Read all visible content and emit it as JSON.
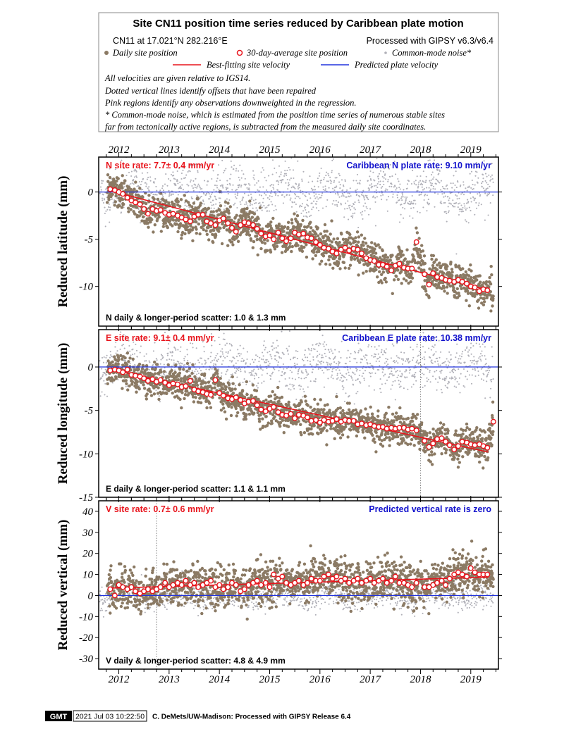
{
  "header": {
    "title": "Site CN11 position time series reduced by Caribbean plate motion",
    "site_info": "CN11 at 17.021°N 282.216°E",
    "processing": "Processed with GIPSY v6.3/v6.4",
    "legend": {
      "daily": "Daily site position",
      "avg30": "30-day-average site position",
      "cmn": "Common-mode noise*",
      "bestfit": "Best-fitting site velocity",
      "predicted": "Predicted plate velocity"
    },
    "notes": [
      "All velocities are given relative to IGS14.",
      "Dotted vertical lines identify offsets that have been repaired",
      "Pink regions identify any observations downweighted in the regression.",
      "* Common-mode noise, which is estimated from the position time series of numerous stable sites",
      "far from tectonically active regions, is subtracted from the measured daily site coordinates."
    ]
  },
  "colors": {
    "daily": "#8b7a64",
    "avg_stroke": "#e8141c",
    "cmn": "#b0b0b8",
    "bestfit": "#e8141c",
    "predicted": "#2233dd",
    "rate_text": "#e8141c",
    "plate_text": "#1111cc"
  },
  "footer": {
    "logo": "GMT",
    "timestamp": "2021 Jul 03 10:22:50",
    "credit": "C. DeMets/UW-Madison: Processed with GIPSY Release 6.4"
  },
  "chart_data": [
    {
      "type": "scatter",
      "component": "N",
      "ylabel": "Reduced latitude (mm)",
      "xticks": [
        2012,
        2013,
        2014,
        2015,
        2016,
        2017,
        2018,
        2019
      ],
      "xlim": [
        2011.6,
        2019.55
      ],
      "ylim": [
        -14.2,
        3.7
      ],
      "yticks": [
        0,
        -5,
        -10
      ],
      "site_rate": "7.7± 0.4 mm/yr",
      "site_rate_label": "N site rate:",
      "plate_rate": "Caribbean N plate rate: 9.10 mm/yr",
      "scatter": "N daily & longer-period scatter:   1.0 &   1.3 mm",
      "offsets": [],
      "bestfit": {
        "x": [
          2011.85,
          2019.35
        ],
        "y": [
          0.1,
          -10.4
        ]
      },
      "predicted": {
        "x": [
          2011.6,
          2019.55
        ],
        "y": [
          0,
          0
        ]
      },
      "avg30": {
        "x": [
          2011.83,
          2011.92,
          2012.0,
          2012.08,
          2012.17,
          2012.25,
          2012.33,
          2012.42,
          2012.5,
          2012.58,
          2012.67,
          2012.75,
          2012.83,
          2012.92,
          2013.0,
          2013.08,
          2013.17,
          2013.25,
          2013.33,
          2013.42,
          2013.5,
          2013.58,
          2013.67,
          2013.75,
          2013.83,
          2013.92,
          2014.0,
          2014.08,
          2014.17,
          2014.25,
          2014.33,
          2014.42,
          2014.5,
          2014.58,
          2014.67,
          2014.75,
          2014.83,
          2014.92,
          2015.0,
          2015.08,
          2015.17,
          2015.25,
          2015.33,
          2015.42,
          2015.5,
          2015.58,
          2015.67,
          2015.75,
          2015.83,
          2015.92,
          2016.0,
          2016.08,
          2016.17,
          2016.25,
          2016.33,
          2016.42,
          2016.5,
          2016.58,
          2016.67,
          2016.75,
          2016.83,
          2016.92,
          2017.0,
          2017.08,
          2017.17,
          2017.25,
          2017.33,
          2017.42,
          2017.5,
          2017.58,
          2017.67,
          2017.75,
          2017.83,
          2017.92,
          2018.08,
          2018.17,
          2018.25,
          2018.33,
          2018.42,
          2018.5,
          2018.58,
          2018.67,
          2018.75,
          2018.83,
          2018.92,
          2019.0,
          2019.08,
          2019.17,
          2019.25,
          2019.33
        ],
        "y": [
          0.3,
          0.2,
          0.0,
          -0.2,
          -0.6,
          -0.9,
          -1.1,
          -1.3,
          -1.8,
          -2.3,
          -1.8,
          -2.0,
          -1.9,
          -2.2,
          -2.4,
          -2.3,
          -2.5,
          -2.7,
          -2.9,
          -3.1,
          -2.6,
          -2.4,
          -2.4,
          -3.1,
          -3.3,
          -3.5,
          -3.0,
          -2.8,
          -3.3,
          -3.8,
          -4.2,
          -3.5,
          -3.2,
          -3.3,
          -3.5,
          -3.9,
          -4.4,
          -4.7,
          -4.6,
          -5.0,
          -4.3,
          -4.9,
          -5.2,
          -4.9,
          -4.3,
          -4.5,
          -4.4,
          -4.8,
          -4.9,
          -5.3,
          -5.6,
          -5.9,
          -6.0,
          -6.3,
          -6.5,
          -6.1,
          -5.9,
          -6.2,
          -6.0,
          -6.1,
          -6.5,
          -7.0,
          -7.2,
          -7.3,
          -7.7,
          -7.7,
          -7.9,
          -8.3,
          -7.8,
          -7.6,
          -8.0,
          -8.1,
          -8.1,
          -5.3,
          -8.7,
          -9.8,
          -8.6,
          -9.0,
          -9.1,
          -9.3,
          -9.4,
          -9.5,
          -9.3,
          -9.5,
          -9.7,
          -10.0,
          -10.1,
          -10.5,
          -10.3,
          -10.4
        ]
      }
    },
    {
      "type": "scatter",
      "component": "E",
      "ylabel": "Reduced longitude (mm)",
      "xticks": [
        2012,
        2013,
        2014,
        2015,
        2016,
        2017,
        2018,
        2019
      ],
      "xlim": [
        2011.6,
        2019.55
      ],
      "ylim": [
        -15.0,
        4.3
      ],
      "yticks": [
        0,
        -5,
        -10,
        -15
      ],
      "site_rate": "9.1± 0.4 mm/yr",
      "site_rate_label": "E site rate:",
      "plate_rate": "Caribbean E plate rate: 10.38 mm/yr",
      "scatter": "E daily & longer-period scatter:   1.1 &   1.1 mm",
      "offsets": [
        2018.0
      ],
      "bestfit": {
        "x": [
          2011.85,
          2019.35
        ],
        "y": [
          -0.3,
          -9.8
        ]
      },
      "predicted": {
        "x": [
          2011.6,
          2019.55
        ],
        "y": [
          0,
          0
        ]
      },
      "avg30": {
        "x": [
          2011.83,
          2011.92,
          2012.0,
          2012.08,
          2012.17,
          2012.25,
          2012.33,
          2012.42,
          2012.5,
          2012.58,
          2012.67,
          2012.75,
          2012.83,
          2012.92,
          2013.0,
          2013.08,
          2013.17,
          2013.25,
          2013.33,
          2013.42,
          2013.5,
          2013.58,
          2013.67,
          2013.75,
          2013.83,
          2013.92,
          2014.0,
          2014.08,
          2014.17,
          2014.25,
          2014.33,
          2014.42,
          2014.5,
          2014.58,
          2014.67,
          2014.75,
          2014.83,
          2014.92,
          2015.0,
          2015.08,
          2015.17,
          2015.25,
          2015.33,
          2015.42,
          2015.5,
          2015.58,
          2015.67,
          2015.75,
          2015.83,
          2015.92,
          2016.0,
          2016.08,
          2016.17,
          2016.25,
          2016.33,
          2016.42,
          2016.5,
          2016.58,
          2016.67,
          2016.75,
          2016.83,
          2016.92,
          2017.0,
          2017.08,
          2017.17,
          2017.25,
          2017.33,
          2017.42,
          2017.5,
          2017.58,
          2017.67,
          2017.75,
          2017.83,
          2017.92,
          2018.08,
          2018.17,
          2018.25,
          2018.33,
          2018.42,
          2018.5,
          2018.58,
          2018.67,
          2018.75,
          2018.83,
          2018.92,
          2019.0,
          2019.08,
          2019.17,
          2019.25,
          2019.33,
          2019.45
        ],
        "y": [
          -0.4,
          -0.3,
          -0.4,
          -0.6,
          -0.3,
          -0.9,
          -1.0,
          -1.1,
          -1.3,
          -1.6,
          -1.4,
          -1.7,
          -1.5,
          -1.8,
          -2.1,
          -1.9,
          -2.0,
          -2.3,
          -2.2,
          -1.6,
          -2.6,
          -2.8,
          -2.9,
          -3.1,
          -3.2,
          -1.5,
          -3.0,
          -3.3,
          -3.6,
          -3.7,
          -3.5,
          -3.8,
          -4.2,
          -4.0,
          -3.9,
          -4.4,
          -4.9,
          -5.1,
          -4.8,
          -4.6,
          -5.2,
          -5.5,
          -5.6,
          -5.4,
          -5.9,
          -5.5,
          -5.6,
          -5.8,
          -6.2,
          -6.1,
          -6.4,
          -6.1,
          -6.3,
          -6.2,
          -6.0,
          -6.3,
          -6.1,
          -6.2,
          -6.2,
          -6.6,
          -6.5,
          -6.7,
          -6.6,
          -6.8,
          -6.9,
          -6.9,
          -7.1,
          -7.0,
          -7.1,
          -7.0,
          -7.0,
          -7.2,
          -7.1,
          -7.3,
          -8.5,
          -9.2,
          -8.8,
          -8.3,
          -8.2,
          -8.6,
          -9.0,
          -9.5,
          -9.1,
          -8.6,
          -8.7,
          -8.9,
          -9.0,
          -8.9,
          -9.1,
          -9.3,
          -6.3
        ]
      }
    },
    {
      "type": "scatter",
      "component": "V",
      "ylabel": "Reduced vertical (mm)",
      "xticks": [
        2012,
        2013,
        2014,
        2015,
        2016,
        2017,
        2018,
        2019
      ],
      "xlim": [
        2011.6,
        2019.55
      ],
      "ylim": [
        -35,
        45
      ],
      "yticks": [
        40,
        30,
        20,
        10,
        0,
        -10,
        -20,
        -30
      ],
      "site_rate": "0.7± 0.6 mm/yr",
      "site_rate_label": "V site rate:",
      "plate_rate": "Predicted vertical rate is zero",
      "scatter": "V daily & longer-period scatter:   4.8 &   4.9 mm",
      "offsets": [
        2012.75
      ],
      "bestfit": {
        "x": [
          2011.85,
          2019.35
        ],
        "y": [
          3.5,
          8.7
        ]
      },
      "predicted": {
        "x": [
          2011.6,
          2019.55
        ],
        "y": [
          0,
          0
        ]
      },
      "avg30": {
        "x": [
          2011.83,
          2011.92,
          2012.0,
          2012.08,
          2012.17,
          2012.25,
          2012.33,
          2012.42,
          2012.5,
          2012.58,
          2012.67,
          2012.75,
          2012.83,
          2012.92,
          2013.0,
          2013.08,
          2013.17,
          2013.25,
          2013.33,
          2013.42,
          2013.5,
          2013.58,
          2013.67,
          2013.75,
          2013.83,
          2013.92,
          2014.0,
          2014.08,
          2014.17,
          2014.25,
          2014.33,
          2014.42,
          2014.5,
          2014.58,
          2014.67,
          2014.75,
          2014.83,
          2014.92,
          2015.0,
          2015.08,
          2015.17,
          2015.25,
          2015.33,
          2015.42,
          2015.5,
          2015.58,
          2015.67,
          2015.75,
          2015.83,
          2015.92,
          2016.0,
          2016.08,
          2016.17,
          2016.25,
          2016.33,
          2016.42,
          2016.5,
          2016.58,
          2016.67,
          2016.75,
          2016.83,
          2016.92,
          2017.0,
          2017.08,
          2017.17,
          2017.25,
          2017.33,
          2017.42,
          2017.5,
          2017.58,
          2017.67,
          2017.75,
          2017.83,
          2017.92,
          2018.08,
          2018.17,
          2018.25,
          2018.33,
          2018.42,
          2018.5,
          2018.58,
          2018.67,
          2018.75,
          2018.83,
          2018.92,
          2019.0,
          2019.08,
          2019.17,
          2019.25,
          2019.33
        ],
        "y": [
          3,
          0,
          5,
          4,
          3,
          4,
          2,
          1,
          2,
          3,
          2,
          3,
          4,
          6,
          4,
          5,
          6,
          5,
          7,
          5,
          6,
          4,
          5,
          6,
          7,
          4,
          5,
          3,
          4,
          6,
          5,
          2,
          3,
          5,
          6,
          7,
          5,
          6,
          4,
          10,
          8,
          9,
          6,
          5,
          6,
          7,
          5,
          6,
          8,
          7,
          7,
          9,
          10,
          8,
          9,
          7,
          8,
          6,
          7,
          8,
          6,
          7,
          8,
          6,
          7,
          8,
          6,
          7,
          9,
          6,
          6,
          5,
          4,
          6,
          4,
          4,
          5,
          6,
          7,
          5,
          8,
          10,
          11,
          10,
          9,
          13,
          11,
          10,
          10,
          10
        ]
      }
    }
  ]
}
